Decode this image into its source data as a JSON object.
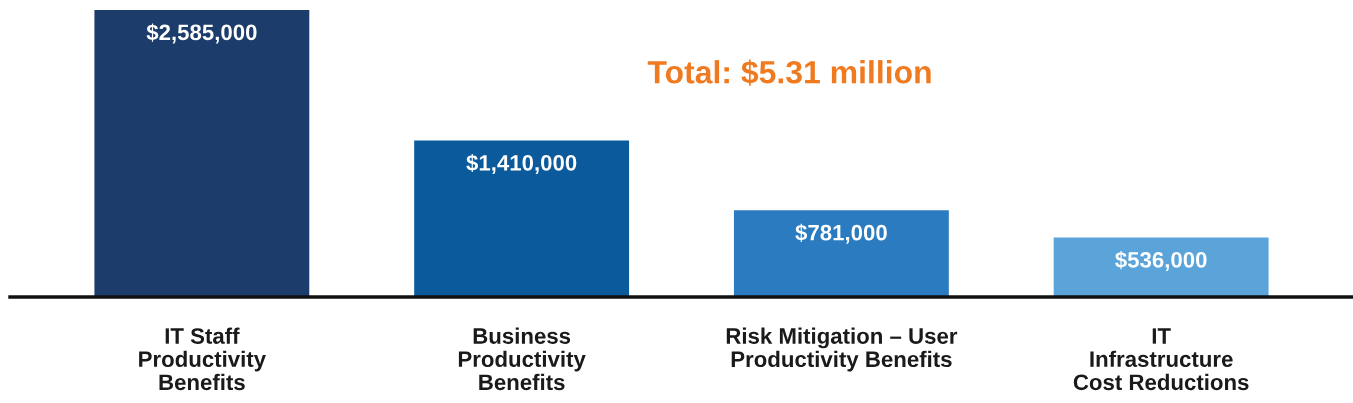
{
  "chart_data": {
    "type": "bar",
    "categories": [
      "IT Staff\nProductivity\nBenefits",
      "Business\nProductivity\nBenefits",
      "Risk Mitigation – User\nProductivity Benefits",
      "IT\nInfrastructure\nCost Reductions"
    ],
    "values": [
      2585000,
      1410000,
      781000,
      536000
    ],
    "colors": [
      "#1c3d6c",
      "#0b5a9b",
      "#2a7bbf",
      "#5ba4d9"
    ],
    "value_labels": [
      "$2,585,000",
      "$1,410,000",
      "$781,000",
      "$536,000"
    ],
    "annotations": [
      "Total: $5.31 million"
    ],
    "grid": false,
    "legend": false,
    "tick_labels": "x"
  }
}
